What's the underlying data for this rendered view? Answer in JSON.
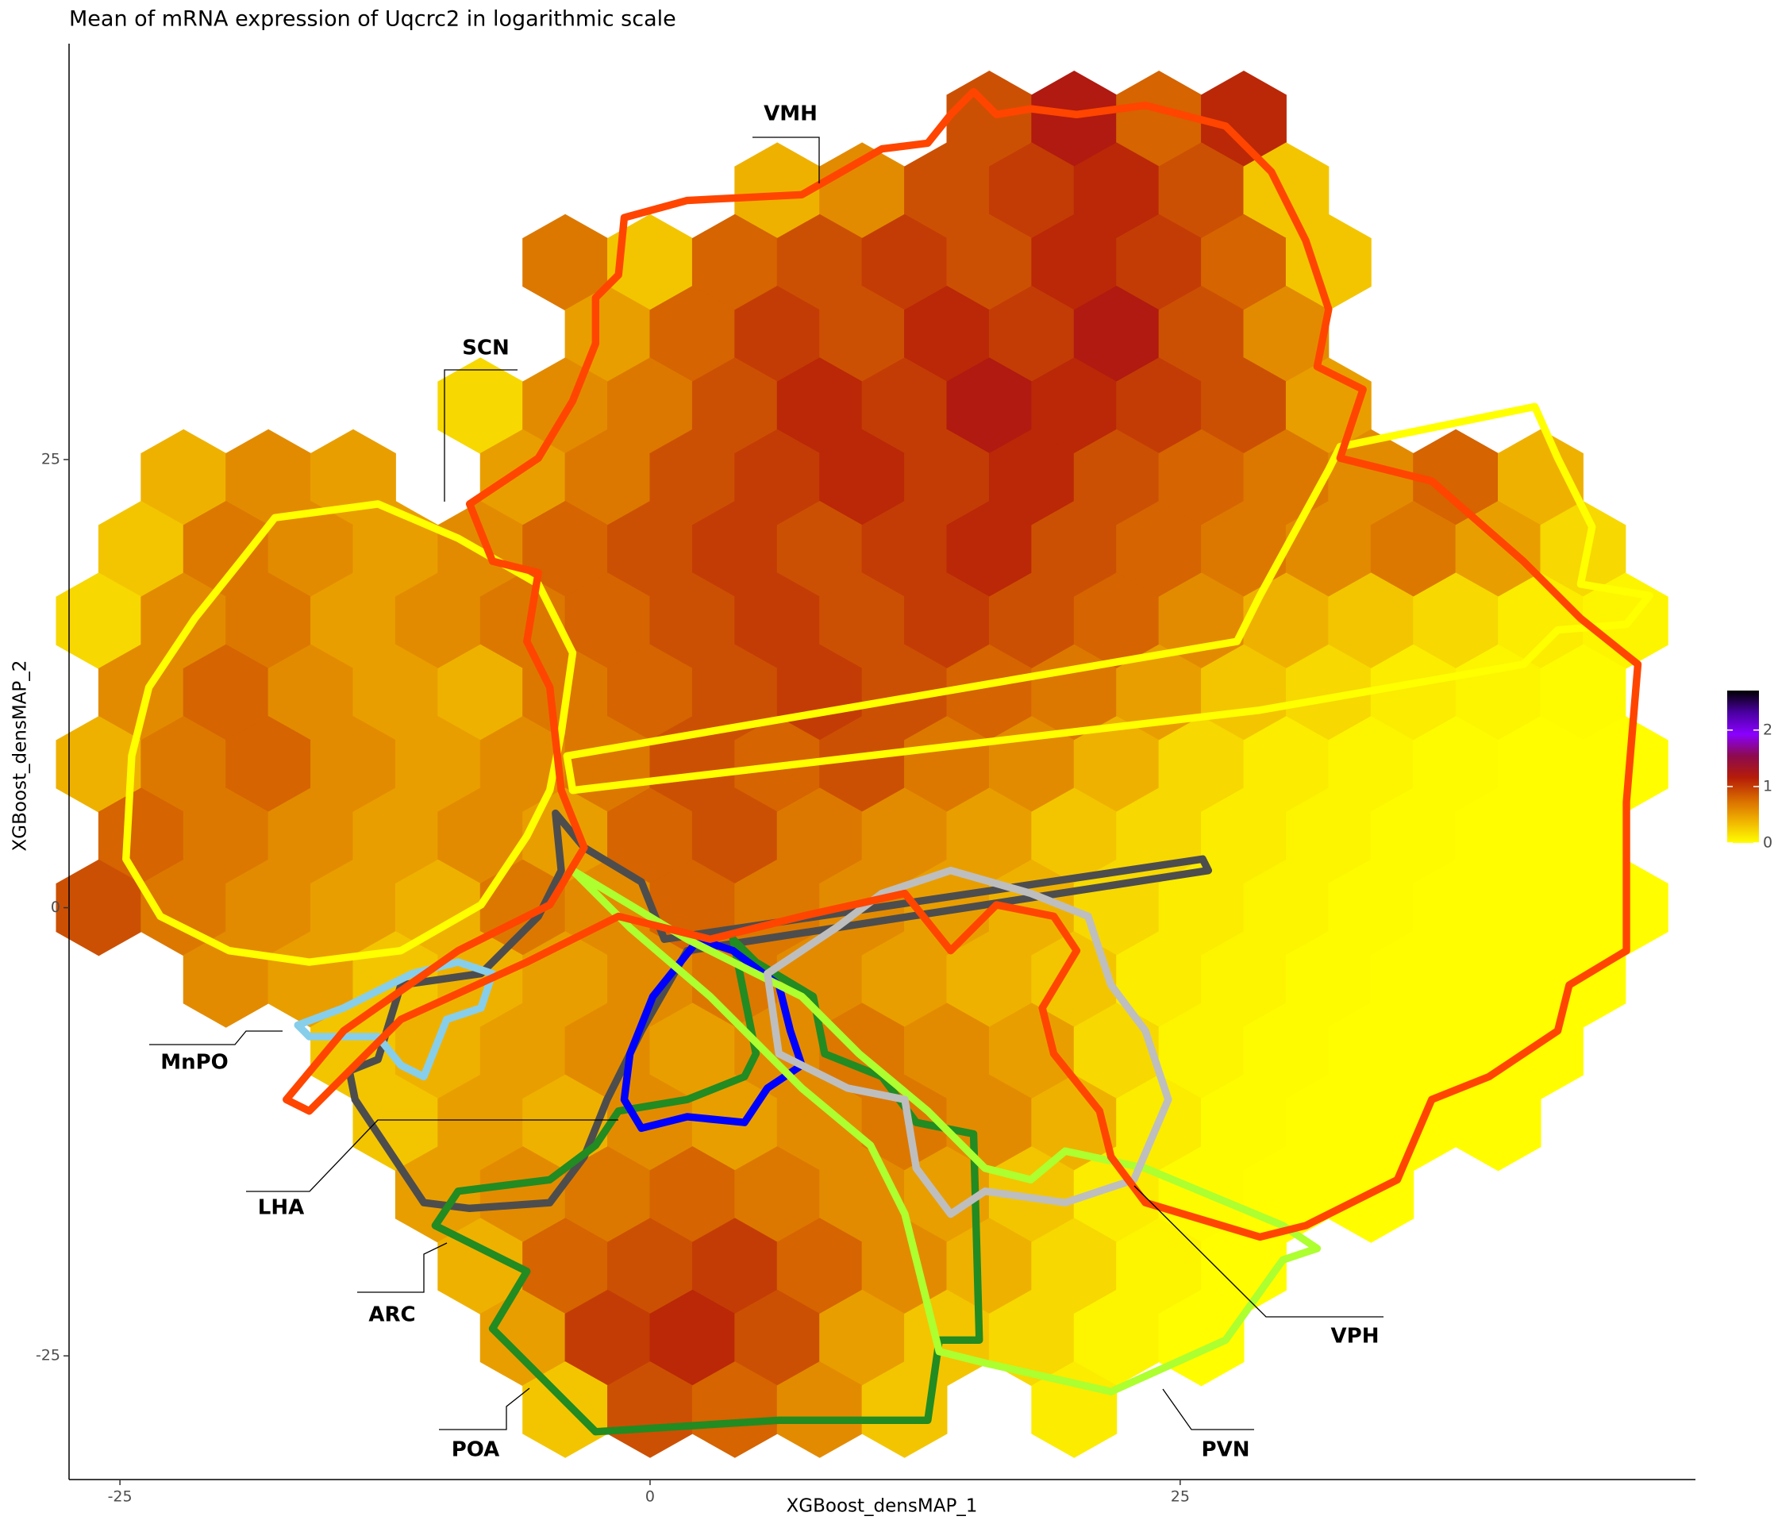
{
  "chart_data": {
    "type": "hexbin",
    "title": "Mean of mRNA expression of Uqcrc2 in logarithmic scale",
    "xlabel": "XGBoost_densMAP_1",
    "ylabel": "XGBoost_densMAP_2",
    "xlim": [
      -27.4,
      49.3
    ],
    "ylim": [
      -31.9,
      48.2
    ],
    "xticks": [
      -25,
      0,
      25
    ],
    "yticks": [
      -25,
      0,
      25
    ],
    "binwidth": 4,
    "colorbar": {
      "lim": [
        0,
        2.7
      ],
      "ticks": [
        0,
        1,
        2
      ],
      "colors": [
        "#ffff00",
        "#f0b400",
        "#d86a00",
        "#b51c08",
        "#8c0a4e",
        "#8a00ff",
        "#4a00a0",
        "#000000"
      ]
    },
    "annotations": [
      "VMH",
      "SCN",
      "MnPO",
      "LHA",
      "ARC",
      "POA",
      "VPH",
      "PVN"
    ],
    "rows": [
      {
        "y": 44,
        "x": [
          16,
          20,
          24,
          28
        ],
        "values": [
          0.9,
          1.2,
          0.8,
          1.1
        ]
      },
      {
        "y": 40,
        "x": [
          6,
          10,
          14,
          18,
          22,
          26,
          30
        ],
        "values": [
          0.4,
          0.6,
          0.9,
          1.0,
          1.1,
          0.9,
          0.3
        ]
      },
      {
        "y": 36,
        "x": [
          -4,
          0,
          4,
          8,
          12,
          16,
          20,
          24,
          28,
          32
        ],
        "values": [
          0.7,
          0.3,
          0.8,
          0.9,
          1.0,
          0.9,
          1.1,
          1.0,
          0.8,
          0.3
        ]
      },
      {
        "y": 32,
        "x": [
          -2,
          2,
          6,
          10,
          14,
          18,
          22,
          26,
          30
        ],
        "values": [
          0.5,
          0.8,
          1.0,
          0.9,
          1.1,
          1.0,
          1.2,
          0.9,
          0.6
        ]
      },
      {
        "y": 28,
        "x": [
          -8,
          -4,
          0,
          4,
          8,
          12,
          16,
          20,
          24,
          28,
          32
        ],
        "values": [
          0.2,
          0.6,
          0.7,
          0.9,
          1.1,
          1.0,
          1.2,
          1.1,
          1.0,
          0.9,
          0.5
        ]
      },
      {
        "y": 24,
        "x": [
          -22,
          -18,
          -14,
          -6,
          -2,
          2,
          6,
          10,
          14,
          18,
          22,
          26,
          30,
          34,
          38,
          42
        ],
        "values": [
          0.4,
          0.6,
          0.5,
          0.5,
          0.7,
          0.9,
          1.0,
          1.1,
          1.0,
          1.1,
          0.9,
          0.8,
          0.7,
          0.6,
          0.8,
          0.4
        ]
      },
      {
        "y": 20,
        "x": [
          -24,
          -20,
          -16,
          -12,
          -8,
          -4,
          0,
          4,
          8,
          12,
          16,
          20,
          24,
          28,
          32,
          36,
          40,
          44
        ],
        "values": [
          0.3,
          0.7,
          0.6,
          0.5,
          0.6,
          0.8,
          0.9,
          1.0,
          0.9,
          1.0,
          1.1,
          0.9,
          0.8,
          0.7,
          0.6,
          0.7,
          0.5,
          0.2
        ]
      },
      {
        "y": 16,
        "x": [
          -26,
          -22,
          -18,
          -14,
          -10,
          -6,
          -2,
          2,
          6,
          10,
          14,
          18,
          22,
          26,
          30,
          34,
          38,
          42,
          46
        ],
        "values": [
          0.2,
          0.6,
          0.7,
          0.5,
          0.6,
          0.7,
          0.8,
          0.9,
          1.0,
          0.9,
          1.0,
          0.9,
          0.8,
          0.6,
          0.4,
          0.3,
          0.2,
          0.1,
          0.05
        ]
      },
      {
        "y": 12,
        "x": [
          -24,
          -20,
          -16,
          -12,
          -8,
          -4,
          0,
          4,
          8,
          12,
          16,
          20,
          24,
          28,
          32,
          36,
          40,
          44
        ],
        "values": [
          0.6,
          0.8,
          0.6,
          0.5,
          0.4,
          0.7,
          0.8,
          0.9,
          1.0,
          0.9,
          0.8,
          0.7,
          0.5,
          0.3,
          0.2,
          0.1,
          0.05,
          0.02
        ]
      },
      {
        "y": 8,
        "x": [
          -26,
          -22,
          -18,
          -14,
          -10,
          -6,
          -2,
          2,
          6,
          10,
          14,
          18,
          22,
          26,
          30,
          34,
          38,
          42,
          46
        ],
        "values": [
          0.4,
          0.7,
          0.8,
          0.6,
          0.5,
          0.6,
          0.7,
          0.9,
          0.8,
          0.9,
          0.7,
          0.6,
          0.4,
          0.2,
          0.1,
          0.05,
          0.02,
          0.01,
          0.01
        ]
      },
      {
        "y": 4,
        "x": [
          -24,
          -20,
          -16,
          -12,
          -8,
          -4,
          0,
          4,
          8,
          12,
          16,
          20,
          24,
          28,
          32,
          36,
          40,
          44
        ],
        "values": [
          0.8,
          0.7,
          0.6,
          0.5,
          0.6,
          0.5,
          0.8,
          0.9,
          0.7,
          0.6,
          0.5,
          0.3,
          0.2,
          0.1,
          0.05,
          0.02,
          0.01,
          0.01
        ]
      },
      {
        "y": 0,
        "x": [
          -26,
          -22,
          -18,
          -14,
          -10,
          -6,
          -2,
          2,
          6,
          10,
          14,
          18,
          22,
          26,
          30,
          34,
          38,
          42,
          46
        ],
        "values": [
          0.9,
          0.7,
          0.6,
          0.5,
          0.4,
          0.7,
          0.6,
          0.8,
          0.7,
          0.6,
          0.5,
          0.4,
          0.2,
          0.1,
          0.05,
          0.02,
          0.01,
          0.01,
          0.01
        ]
      },
      {
        "y": -4,
        "x": [
          -20,
          -16,
          -12,
          -8,
          -4,
          0,
          4,
          8,
          12,
          16,
          20,
          24,
          28,
          32,
          36,
          40,
          44
        ],
        "values": [
          0.6,
          0.5,
          0.3,
          0.4,
          0.5,
          0.6,
          0.7,
          0.6,
          0.5,
          0.4,
          0.3,
          0.1,
          0.05,
          0.02,
          0.01,
          0.01,
          0.01
        ]
      },
      {
        "y": -8,
        "x": [
          -14,
          -10,
          -6,
          -2,
          2,
          6,
          10,
          14,
          18,
          22,
          26,
          30,
          34,
          38,
          42
        ],
        "values": [
          0.3,
          0.4,
          0.5,
          0.6,
          0.5,
          0.6,
          0.7,
          0.6,
          0.5,
          0.2,
          0.05,
          0.02,
          0.01,
          0.01,
          0.01
        ]
      },
      {
        "y": -12,
        "x": [
          -12,
          -8,
          -4,
          0,
          4,
          8,
          12,
          16,
          20,
          24,
          28,
          32,
          36,
          40
        ],
        "values": [
          0.3,
          0.5,
          0.4,
          0.6,
          0.5,
          0.6,
          0.7,
          0.6,
          0.4,
          0.1,
          0.02,
          0.01,
          0.01,
          0.01
        ]
      },
      {
        "y": -16,
        "x": [
          -10,
          -6,
          -2,
          2,
          6,
          10,
          14,
          18,
          22,
          26,
          30,
          34
        ],
        "values": [
          0.5,
          0.6,
          0.7,
          0.8,
          0.7,
          0.6,
          0.5,
          0.3,
          0.1,
          0.02,
          0.01,
          0.01
        ]
      },
      {
        "y": -20,
        "x": [
          -8,
          -4,
          0,
          4,
          8,
          12,
          16,
          20,
          24,
          28
        ],
        "values": [
          0.4,
          0.8,
          0.9,
          1.0,
          0.8,
          0.6,
          0.4,
          0.2,
          0.05,
          0.01
        ]
      },
      {
        "y": -24,
        "x": [
          -6,
          -2,
          2,
          6,
          10,
          14,
          18,
          22,
          26
        ],
        "values": [
          0.5,
          1.0,
          1.1,
          0.9,
          0.5,
          0.3,
          0.2,
          0.05,
          0.01
        ]
      },
      {
        "y": -28,
        "x": [
          -4,
          0,
          4,
          8,
          12,
          20
        ],
        "values": [
          0.3,
          0.9,
          0.8,
          0.6,
          0.3,
          0.1
        ]
      }
    ]
  }
}
